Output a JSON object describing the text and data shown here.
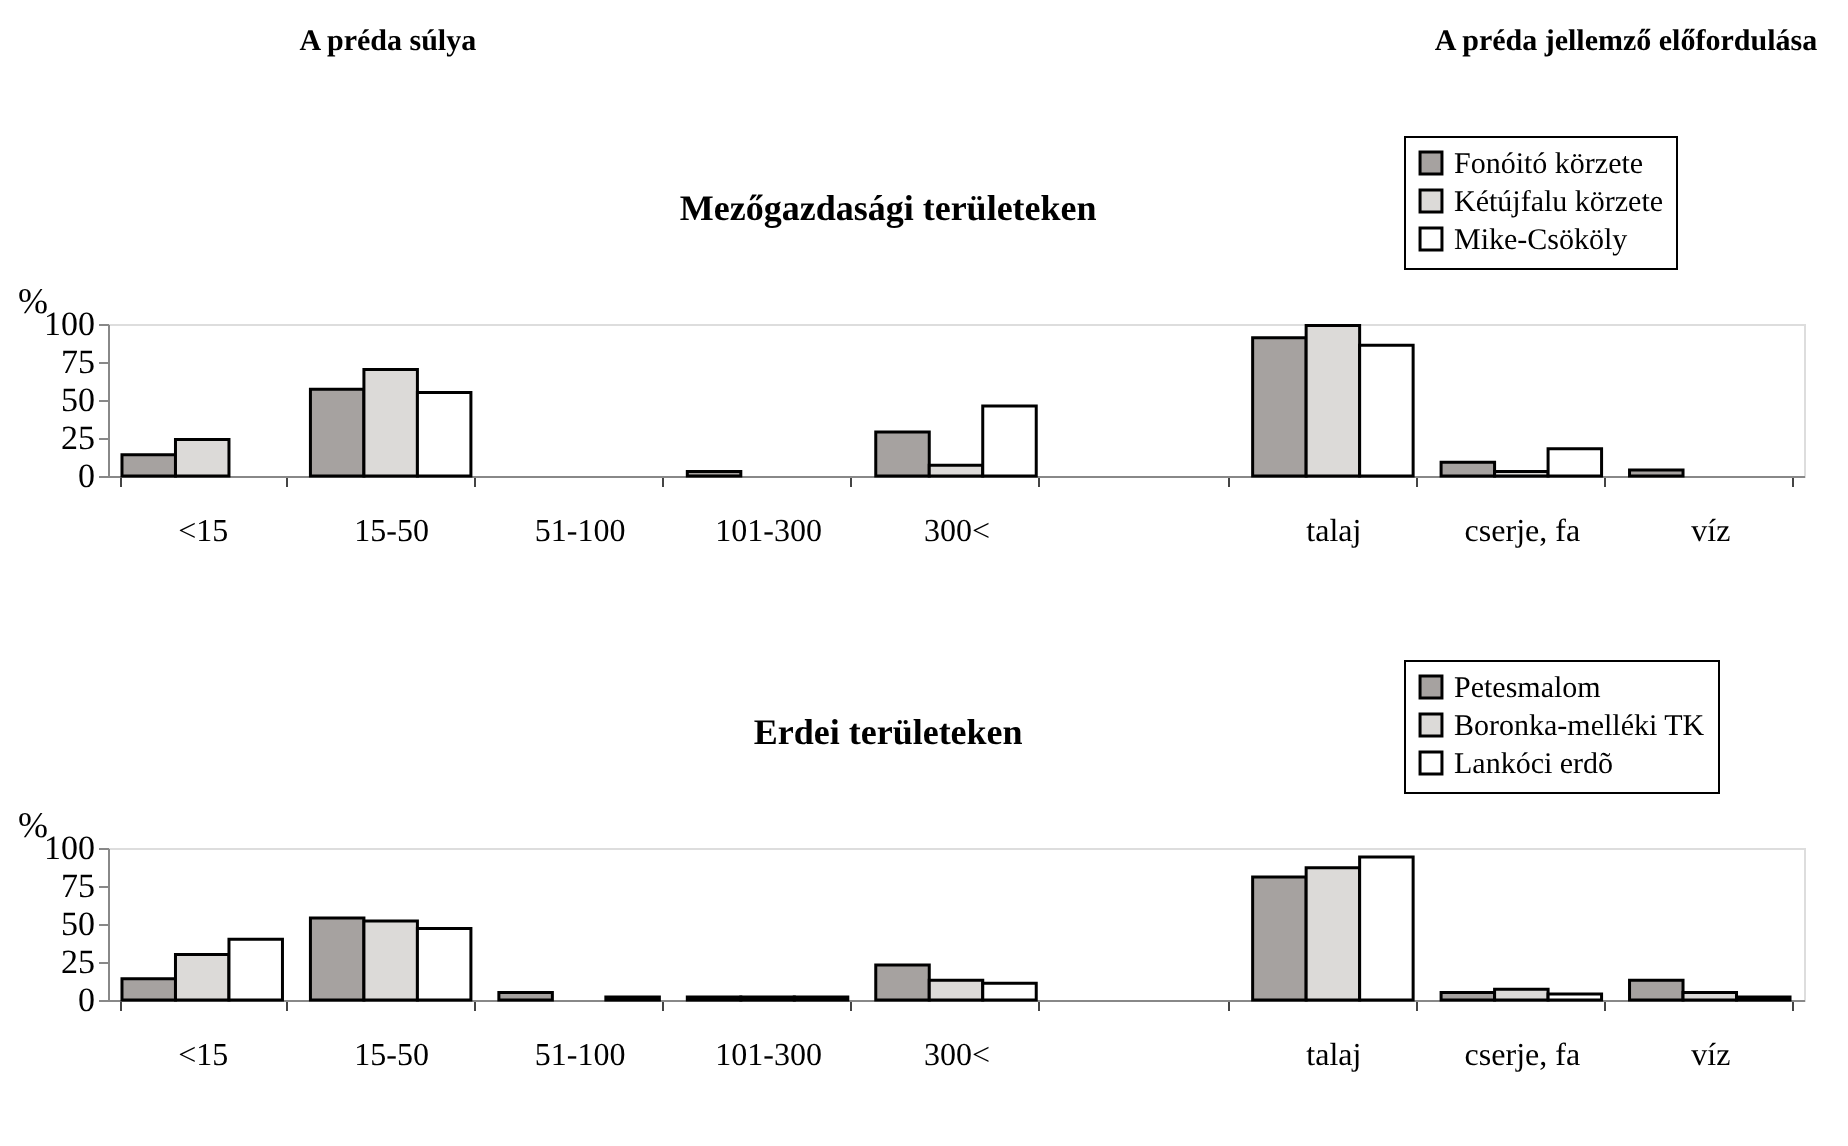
{
  "chart_data": [
    {
      "type": "bar",
      "title": "Mezőgazdasági területeken",
      "ylabel": "%",
      "annotations": [
        "A préda súlya",
        "A préda jellemző előfordulása"
      ],
      "categories": [
        "<15",
        "15-50",
        "51-100",
        "101-300",
        "300<",
        null,
        "talaj",
        "cserje, fa",
        "víz"
      ],
      "series": [
        {
          "name": "Fonóitó körzete",
          "color": "#a6a2a0",
          "values": [
            14,
            57,
            0,
            3,
            29,
            null,
            91,
            9,
            4
          ]
        },
        {
          "name": "Kétújfalu körzete",
          "color": "#dcdad8",
          "values": [
            24,
            70,
            0,
            0,
            7,
            null,
            99,
            3,
            0
          ]
        },
        {
          "name": "Mike-Csököly",
          "color": "#ffffff",
          "values": [
            0,
            55,
            0,
            0,
            46,
            null,
            86,
            18,
            0
          ]
        }
      ],
      "ylim": [
        0,
        100
      ],
      "yticks": [
        0,
        25,
        50,
        75,
        100
      ],
      "grid": false,
      "legend": "top right"
    },
    {
      "type": "bar",
      "title": "Erdei területeken",
      "ylabel": "%",
      "categories": [
        "<15",
        "15-50",
        "51-100",
        "101-300",
        "300<",
        null,
        "talaj",
        "cserje, fa",
        "víz"
      ],
      "series": [
        {
          "name": "Petesmalom",
          "color": "#a6a2a0",
          "values": [
            14,
            54,
            5,
            2,
            23,
            null,
            81,
            5,
            13
          ]
        },
        {
          "name": "Boronka-melléki TK",
          "color": "#dcdad8",
          "values": [
            30,
            52,
            0,
            2,
            13,
            null,
            87,
            7,
            5
          ]
        },
        {
          "name": "Lankóci erdõ",
          "color": "#ffffff",
          "values": [
            40,
            47,
            2,
            2,
            11,
            null,
            94,
            4,
            2
          ]
        }
      ],
      "ylim": [
        0,
        100
      ],
      "yticks": [
        0,
        25,
        50,
        75,
        100
      ],
      "grid": false,
      "legend": "top right"
    }
  ]
}
